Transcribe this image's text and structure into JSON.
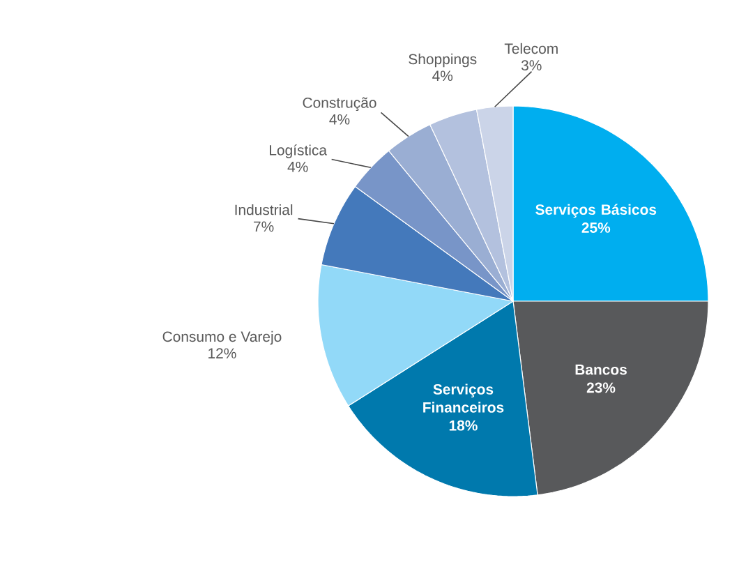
{
  "chart_data": {
    "type": "pie",
    "categories": [
      "Serviços Básicos",
      "Bancos",
      "Serviços Financeiros",
      "Consumo e Varejo",
      "Industrial",
      "Logística",
      "Construção",
      "Shoppings",
      "Telecom"
    ],
    "values": [
      25,
      23,
      18,
      12,
      7,
      4,
      4,
      4,
      3
    ],
    "value_labels": [
      "25%",
      "23%",
      "18%",
      "12%",
      "7%",
      "4%",
      "4%",
      "4%",
      "3%"
    ],
    "colors": [
      "#00aeef",
      "#58595b",
      "#0079ad",
      "#92d9f8",
      "#4479bb",
      "#7895c8",
      "#9aaed3",
      "#b3c1de",
      "#cbd4e8"
    ]
  }
}
